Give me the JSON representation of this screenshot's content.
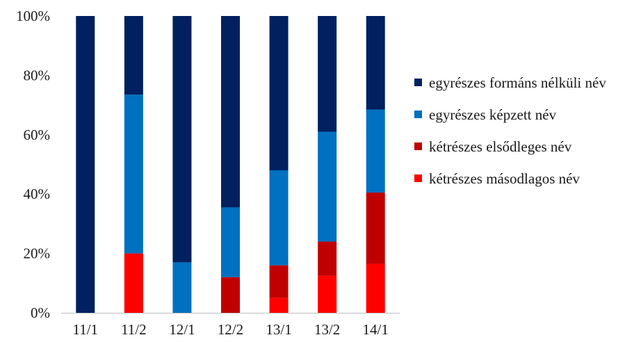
{
  "chart_data": {
    "type": "bar",
    "stacked": true,
    "normalized": true,
    "categories": [
      "11/1",
      "11/2",
      "12/1",
      "12/2",
      "13/1",
      "13/2",
      "14/1"
    ],
    "series": [
      {
        "name": "kétrészes másodlagos név",
        "color": "#ff0000",
        "values": [
          0,
          20,
          0,
          0,
          5,
          12.5,
          16.5
        ]
      },
      {
        "name": "kétrészes elsődleges név",
        "color": "#c00000",
        "values": [
          0,
          0,
          0,
          12,
          11,
          11.5,
          24
        ]
      },
      {
        "name": "egyrészes képzett név",
        "color": "#0070c0",
        "values": [
          0,
          53.5,
          17,
          23.5,
          32,
          37,
          28
        ]
      },
      {
        "name": "egyrészes formáns nélküli név",
        "color": "#002060",
        "values": [
          100,
          26.5,
          83,
          64.5,
          52,
          39,
          31.5
        ]
      }
    ],
    "ylim": [
      0,
      100
    ],
    "yticks": [
      "0%",
      "20%",
      "40%",
      "60%",
      "80%",
      "100%"
    ],
    "ytick_values": [
      0,
      20,
      40,
      60,
      80,
      100
    ],
    "legend_position": "right",
    "grid": false
  }
}
